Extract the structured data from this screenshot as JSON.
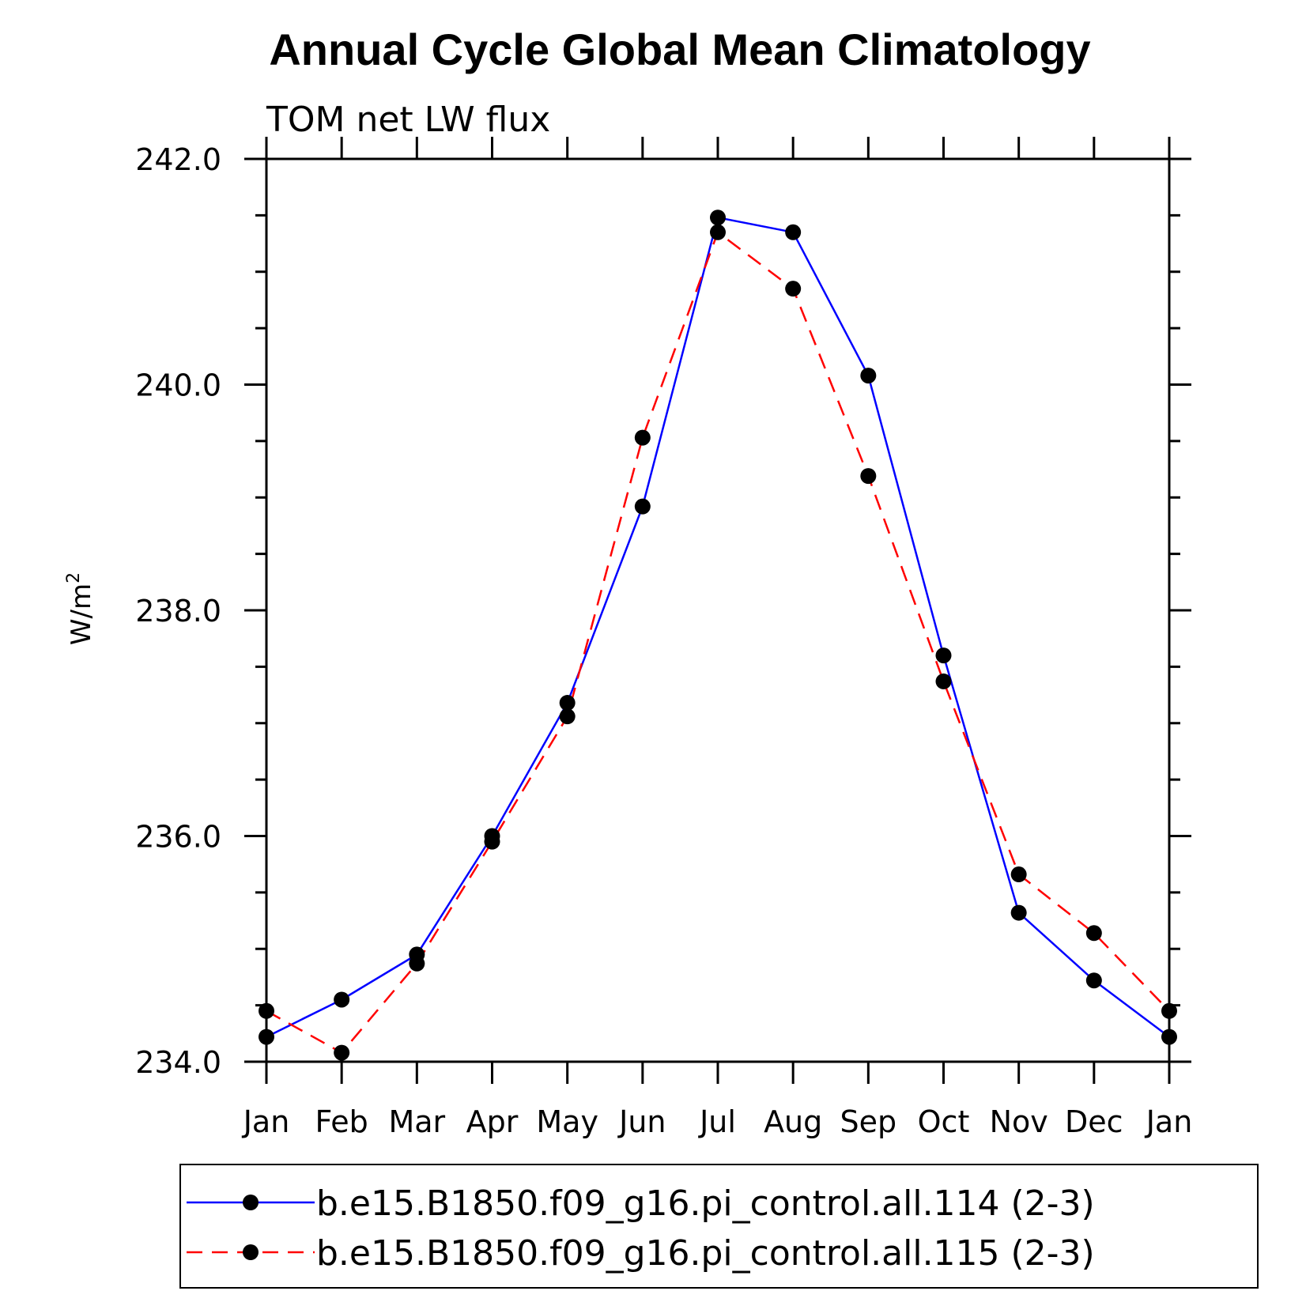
{
  "chart_data": {
    "type": "line",
    "title": "Annual Cycle Global Mean Climatology",
    "subtitle": "TOM net LW flux",
    "xlabel": "",
    "ylabel_base": "W/m",
    "ylabel_sup": "2",
    "categories": [
      "Jan",
      "Feb",
      "Mar",
      "Apr",
      "May",
      "Jun",
      "Jul",
      "Aug",
      "Sep",
      "Oct",
      "Nov",
      "Dec",
      "Jan"
    ],
    "ylim": [
      234.0,
      242.0
    ],
    "yticks": [
      "234.0",
      "236.0",
      "238.0",
      "240.0",
      "242.0"
    ],
    "grid": false,
    "legend_position": "bottom",
    "series": [
      {
        "name": "b.e15.B1850.f09_g16.pi_control.all.114 (2-3)",
        "color": "#0000ff",
        "dash": "solid",
        "marker": "filled-circle",
        "values": [
          234.22,
          234.55,
          234.95,
          236.0,
          237.18,
          238.92,
          241.48,
          241.35,
          240.08,
          237.6,
          235.32,
          234.72,
          234.22
        ]
      },
      {
        "name": "b.e15.B1850.f09_g16.pi_control.all.115 (2-3)",
        "color": "#ff0000",
        "dash": "dashed",
        "marker": "filled-circle",
        "values": [
          234.45,
          234.08,
          234.87,
          235.95,
          237.06,
          239.53,
          241.35,
          240.85,
          239.19,
          237.37,
          235.66,
          235.14,
          234.45
        ]
      }
    ]
  }
}
